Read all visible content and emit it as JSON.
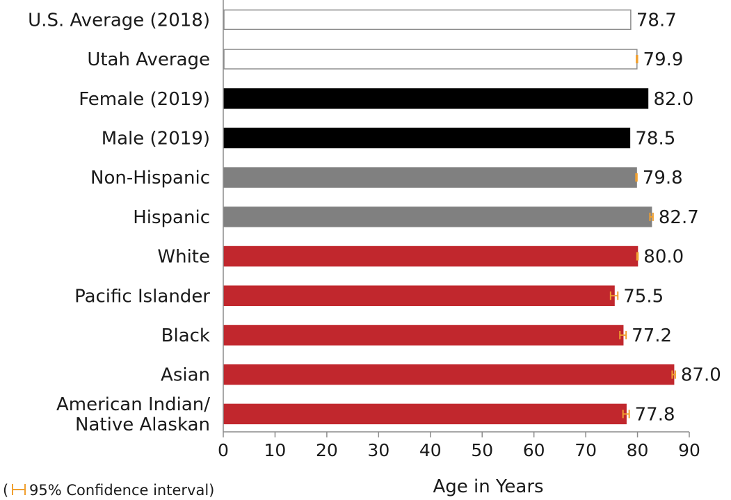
{
  "chart_data": {
    "type": "bar",
    "orientation": "horizontal",
    "xlabel": "Age in Years",
    "xlim": [
      0,
      90
    ],
    "xticks": [
      "0",
      "10",
      "20",
      "30",
      "40",
      "50",
      "60",
      "70",
      "80",
      "90"
    ],
    "grid": false,
    "legend": {
      "placement": "bottom-left",
      "prefix": "(",
      "text": "95% Confidence interval)",
      "color": "#f0a030"
    },
    "bars": [
      {
        "label": "U.S. Average (2018)",
        "value": 78.7,
        "display": "78.7",
        "fill": "#ffffff",
        "stroke": "#8c8c8c",
        "ci": null
      },
      {
        "label": "Utah Average",
        "value": 79.9,
        "display": "79.9",
        "fill": "#ffffff",
        "stroke": "#8c8c8c",
        "ci": [
          79.8,
          80.0
        ]
      },
      {
        "label": "Female (2019)",
        "value": 82.0,
        "display": "82.0",
        "fill": "#000000",
        "stroke": "#000000",
        "ci": null
      },
      {
        "label": "Male (2019)",
        "value": 78.5,
        "display": "78.5",
        "fill": "#000000",
        "stroke": "#000000",
        "ci": null
      },
      {
        "label": "Non-Hispanic",
        "value": 79.8,
        "display": "79.8",
        "fill": "#808080",
        "stroke": "#808080",
        "ci": [
          79.7,
          79.9
        ]
      },
      {
        "label": "Hispanic",
        "value": 82.7,
        "display": "82.7",
        "fill": "#808080",
        "stroke": "#808080",
        "ci": [
          82.4,
          83.0
        ]
      },
      {
        "label": "White",
        "value": 80.0,
        "display": "80.0",
        "fill": "#c1272d",
        "stroke": "#c1272d",
        "ci": [
          79.9,
          80.1
        ]
      },
      {
        "label": "Pacific Islander",
        "value": 75.5,
        "display": "75.5",
        "fill": "#c1272d",
        "stroke": "#c1272d",
        "ci": [
          74.8,
          76.2
        ]
      },
      {
        "label": "Black",
        "value": 77.2,
        "display": "77.2",
        "fill": "#c1272d",
        "stroke": "#c1272d",
        "ci": [
          76.6,
          77.8
        ]
      },
      {
        "label": "Asian",
        "value": 87.0,
        "display": "87.0",
        "fill": "#c1272d",
        "stroke": "#c1272d",
        "ci": [
          86.7,
          87.3
        ]
      },
      {
        "label": "American Indian/\nNative Alaskan",
        "value": 77.8,
        "display": "77.8",
        "fill": "#c1272d",
        "stroke": "#c1272d",
        "ci": [
          77.2,
          78.4
        ]
      }
    ]
  }
}
